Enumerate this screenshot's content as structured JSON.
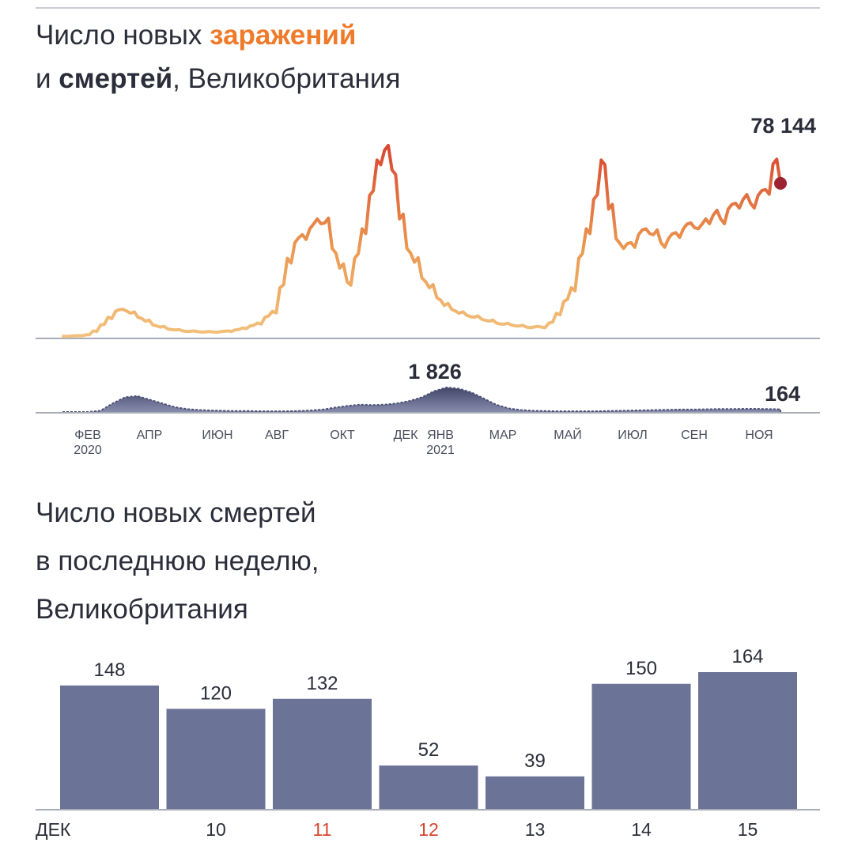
{
  "title1": {
    "line1_prefix": "Число новых ",
    "line1_accent": "заражений",
    "line2_prefix": "и ",
    "line2_bold": "смертей",
    "line2_suffix": ", Великобритания"
  },
  "title2": {
    "line1": "Число новых смертей",
    "line2": "в последнюю неделю,",
    "line3": "Великобритания"
  },
  "colors": {
    "infections_low": "#f2c27e",
    "infections_mid": "#eb9a52",
    "infections_high": "#d7442f",
    "end_marker": "#9c2430",
    "deaths_area": "#5b5f84",
    "bars": "#6b7396",
    "axis": "#a9adb8",
    "highlight_tick": "#d7442f"
  },
  "chart_data": [
    {
      "type": "line",
      "series": [
        {
          "values": [
            0.3,
            0.4,
            0.6,
            1,
            3,
            6,
            10,
            13,
            14,
            12,
            10,
            8,
            6,
            5,
            4,
            3.5,
            3,
            2.8,
            2.6,
            2.5,
            2.5,
            2.6,
            3,
            3.5,
            4.5,
            5.5,
            7,
            10,
            13,
            25,
            40,
            48,
            52,
            55,
            60,
            58,
            45,
            35,
            28,
            40,
            55,
            72,
            90,
            95,
            85,
            60,
            45,
            38,
            30,
            25,
            20,
            16,
            14,
            12,
            11,
            10,
            9,
            8,
            7,
            6.5,
            6,
            5.5,
            5,
            5,
            5,
            7,
            12,
            18,
            25,
            40,
            55,
            70,
            90,
            65,
            50,
            45,
            48,
            52,
            55,
            52,
            48,
            50,
            53,
            55,
            58,
            55,
            60,
            62,
            60,
            65,
            68,
            70,
            68,
            72,
            75,
            88,
            78.144
          ],
          "annotations": [
            {
              "label": "78 144",
              "value": 78.144
            }
          ]
        }
      ]
    },
    {
      "type": "area",
      "series": [
        {
          "values": [
            0,
            0,
            0,
            0.05,
            0.35,
            0.6,
            0.65,
            0.5,
            0.35,
            0.2,
            0.12,
            0.08,
            0.06,
            0.05,
            0.04,
            0.04,
            0.03,
            0.03,
            0.03,
            0.04,
            0.06,
            0.1,
            0.18,
            0.25,
            0.3,
            0.28,
            0.3,
            0.35,
            0.45,
            0.6,
            0.85,
            1.0,
            0.95,
            0.8,
            0.55,
            0.3,
            0.15,
            0.08,
            0.05,
            0.04,
            0.03,
            0.03,
            0.03,
            0.03,
            0.04,
            0.05,
            0.06,
            0.07,
            0.08,
            0.09,
            0.1,
            0.1,
            0.11,
            0.12,
            0.12,
            0.13,
            0.13,
            0.12,
            0.11
          ],
          "annotations": [
            {
              "label": "1 826",
              "value": 1826
            },
            {
              "label": "164",
              "value": 164
            }
          ]
        }
      ],
      "x_ticks": [
        {
          "label": "ФЕВ",
          "sub": "2020"
        },
        {
          "label": "АПР",
          "sub": ""
        },
        {
          "label": "ИЮН",
          "sub": ""
        },
        {
          "label": "АВГ",
          "sub": ""
        },
        {
          "label": "ОКТ",
          "sub": ""
        },
        {
          "label": "ДЕК",
          "sub": ""
        },
        {
          "label": "ЯНВ",
          "sub": "2021"
        },
        {
          "label": "МАР",
          "sub": ""
        },
        {
          "label": "МАЙ",
          "sub": ""
        },
        {
          "label": "ИЮЛ",
          "sub": ""
        },
        {
          "label": "СЕН",
          "sub": ""
        },
        {
          "label": "НОЯ",
          "sub": ""
        }
      ]
    },
    {
      "type": "bar",
      "categories": [
        "ДЕК",
        "10",
        "11",
        "12",
        "13",
        "14",
        "15"
      ],
      "values": [
        148,
        120,
        132,
        52,
        39,
        150,
        164
      ],
      "highlight_categories": [
        "11",
        "12"
      ]
    }
  ]
}
